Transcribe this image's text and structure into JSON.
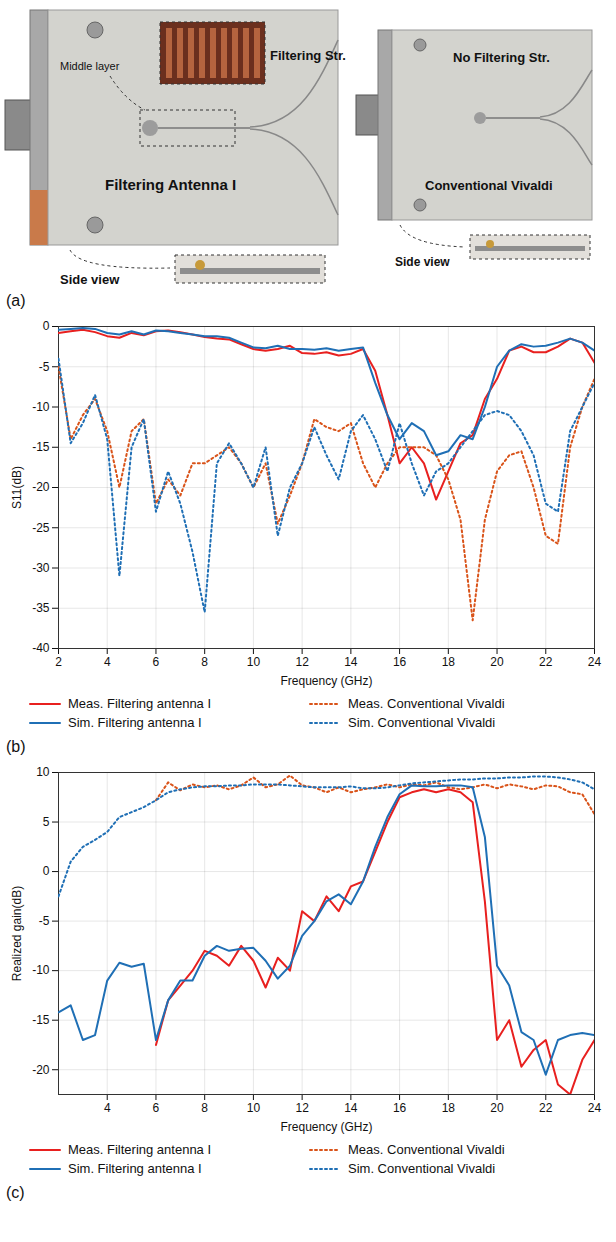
{
  "photo_panel": {
    "panel": "(a)",
    "left": {
      "title": "Filtering Antenna I",
      "inset": "Filtering Str.",
      "inset_note": "Middle layer",
      "side_view": "Side view"
    },
    "right": {
      "title": "Conventional Vivaldi",
      "note": "No Filtering Str.",
      "side_view": "Side view"
    }
  },
  "chart_data": [
    {
      "type": "line",
      "panel": "(b)",
      "xlabel": "Frequency (GHz)",
      "ylabel": "S11(dB)",
      "xlim": [
        2,
        24
      ],
      "xticks": [
        2,
        4,
        6,
        8,
        10,
        12,
        14,
        16,
        18,
        20,
        22,
        24
      ],
      "ylim": [
        -40,
        0
      ],
      "yticks": [
        -40,
        -35,
        -30,
        -25,
        -20,
        -15,
        -10,
        -5,
        0
      ],
      "grid": true,
      "legend": "bottom",
      "x": [
        2,
        2.5,
        3,
        3.5,
        4,
        4.5,
        5,
        5.5,
        6,
        6.5,
        7,
        7.5,
        8,
        8.5,
        9,
        9.5,
        10,
        10.5,
        11,
        11.5,
        12,
        12.5,
        13,
        13.5,
        14,
        14.5,
        15,
        15.5,
        16,
        16.5,
        17,
        17.5,
        18,
        18.5,
        19,
        19.5,
        20,
        20.5,
        21,
        21.5,
        22,
        22.5,
        23,
        23.5,
        24
      ],
      "series": [
        {
          "name": "Meas. Filtering antenna I",
          "color": "#e8201f",
          "line_style": "solid",
          "values": [
            -0.8,
            -0.6,
            -0.4,
            -0.7,
            -1.2,
            -1.4,
            -0.8,
            -1.1,
            -0.6,
            -0.5,
            -0.7,
            -1.0,
            -1.3,
            -1.5,
            -1.6,
            -2.2,
            -2.8,
            -3.0,
            -2.8,
            -2.4,
            -3.3,
            -3.4,
            -3.2,
            -3.6,
            -3.4,
            -2.8,
            -5.5,
            -11,
            -17,
            -15,
            -17,
            -21.5,
            -18,
            -14.5,
            -13.5,
            -9,
            -6.5,
            -3,
            -2.5,
            -3.2,
            -3.2,
            -2.5,
            -1.5,
            -2,
            -4.5
          ]
        },
        {
          "name": "Meas. Conventional Vivaldi",
          "color": "#d95319",
          "line_style": "dotted",
          "values": [
            -5,
            -14,
            -11,
            -9,
            -13,
            -20,
            -13,
            -11.5,
            -22,
            -19,
            -21,
            -17,
            -17,
            -16,
            -15,
            -17,
            -20,
            -17,
            -24.5,
            -21,
            -17,
            -11.5,
            -12.5,
            -13,
            -12,
            -17,
            -20,
            -17,
            -15,
            -15,
            -15,
            -16,
            -19,
            -24,
            -36.5,
            -24,
            -18,
            -16,
            -15.5,
            -20,
            -26,
            -27,
            -15,
            -10,
            -6.5
          ]
        },
        {
          "name": "Sim. Filtering antenna I",
          "color": "#1f6fb5",
          "line_style": "solid",
          "values": [
            -0.4,
            -0.3,
            -0.2,
            -0.3,
            -0.8,
            -1.0,
            -0.6,
            -1.0,
            -0.5,
            -0.6,
            -0.8,
            -1.0,
            -1.2,
            -1.2,
            -1.4,
            -2.0,
            -2.6,
            -2.7,
            -2.4,
            -2.8,
            -2.8,
            -2.9,
            -2.7,
            -3.0,
            -2.8,
            -2.6,
            -7,
            -11,
            -14,
            -12,
            -13,
            -16,
            -15.5,
            -13.5,
            -14,
            -10,
            -5,
            -3,
            -2.2,
            -2.5,
            -2.4,
            -2.0,
            -1.5,
            -2.0,
            -3
          ]
        },
        {
          "name": "Sim. Conventional Vivaldi",
          "color": "#1f6fb5",
          "line_style": "dotted",
          "values": [
            -4,
            -14.5,
            -12,
            -8.5,
            -14,
            -31,
            -15,
            -11.5,
            -23,
            -18,
            -22,
            -28,
            -35.5,
            -17,
            -14.5,
            -17,
            -20,
            -15,
            -26,
            -20,
            -17,
            -12.5,
            -16,
            -19,
            -13,
            -11,
            -14,
            -18,
            -12,
            -17,
            -21,
            -18,
            -17,
            -15,
            -13,
            -11,
            -10.5,
            -11,
            -13,
            -16,
            -22,
            -23,
            -13,
            -10,
            -7
          ]
        }
      ]
    },
    {
      "type": "line",
      "panel": "(c)",
      "xlabel": "Frequency (GHz)",
      "ylabel": "Realized gain(dB)",
      "xlim": [
        2,
        24
      ],
      "xticks": [
        4,
        6,
        8,
        10,
        12,
        14,
        16,
        18,
        20,
        22,
        24
      ],
      "ylim": [
        -22.5,
        10
      ],
      "yticks": [
        -20,
        -15,
        -10,
        -5,
        0,
        5,
        10
      ],
      "grid": true,
      "legend": "bottom",
      "x": [
        2,
        2.5,
        3,
        3.5,
        4,
        4.5,
        5,
        5.5,
        6,
        6.5,
        7,
        7.5,
        8,
        8.5,
        9,
        9.5,
        10,
        10.5,
        11,
        11.5,
        12,
        12.5,
        13,
        13.5,
        14,
        14.5,
        15,
        15.5,
        16,
        16.5,
        17,
        17.5,
        18,
        18.5,
        19,
        19.5,
        20,
        20.5,
        21,
        21.5,
        22,
        22.5,
        23,
        23.5,
        24
      ],
      "series": [
        {
          "name": "Meas. Filtering antenna I",
          "color": "#e8201f",
          "line_style": "solid",
          "values": [
            null,
            null,
            null,
            null,
            null,
            null,
            null,
            null,
            -17.5,
            -13,
            -11.5,
            -10,
            -8,
            -8.5,
            -9.5,
            -7.5,
            -9,
            -11.7,
            -8.7,
            -10,
            -4,
            -5,
            -2.5,
            -4,
            -1.5,
            -1,
            2,
            5,
            7.5,
            8,
            8.3,
            8,
            8.3,
            8,
            7,
            -3,
            -17,
            -15,
            -19.7,
            -18,
            -17,
            -21.5,
            -22.5,
            -19,
            -17
          ]
        },
        {
          "name": "Meas. Conventional Vivaldi",
          "color": "#d95319",
          "line_style": "dotted",
          "values": [
            null,
            null,
            null,
            null,
            null,
            null,
            null,
            null,
            7.2,
            9,
            8.2,
            8.8,
            8.5,
            8.7,
            8.3,
            8.7,
            9.5,
            8.5,
            8.8,
            9.7,
            8.7,
            8.5,
            8.0,
            8.5,
            8.0,
            8.3,
            8.5,
            8.8,
            8.5,
            8.8,
            8.7,
            9,
            8.5,
            8.3,
            8.5,
            8.8,
            8.4,
            8.8,
            8.6,
            8.3,
            8.7,
            8.6,
            8.0,
            7.8,
            5.8
          ]
        },
        {
          "name": "Sim. Filtering antenna I",
          "color": "#1f6fb5",
          "line_style": "solid",
          "values": [
            -14.2,
            -13.5,
            -17,
            -16.5,
            -11,
            -9.2,
            -9.6,
            -9.3,
            -17,
            -13,
            -11,
            -11,
            -8.5,
            -7.5,
            -8,
            -7.8,
            -7.7,
            -9,
            -10.8,
            -9.5,
            -6.5,
            -5,
            -3,
            -2.3,
            -3.3,
            -1,
            2.5,
            5.5,
            7.8,
            8.7,
            8.6,
            8.6,
            8.7,
            8.7,
            8.5,
            3.5,
            -9.5,
            -11.5,
            -16.2,
            -17,
            -20.5,
            -17,
            -16.5,
            -16.3,
            -16.5
          ]
        },
        {
          "name": "Sim. Conventional Vivaldi",
          "color": "#1f6fb5",
          "line_style": "dotted",
          "values": [
            -2.5,
            1,
            2.5,
            3.2,
            4,
            5.5,
            6,
            6.5,
            7.2,
            8,
            8.3,
            8.5,
            8.6,
            8.6,
            8.7,
            8.7,
            8.8,
            8.8,
            8.8,
            8.7,
            8.6,
            8.5,
            8.5,
            8.5,
            8.6,
            8.4,
            8.4,
            8.5,
            8.7,
            8.9,
            9,
            9.1,
            9.2,
            9.3,
            9.3,
            9.4,
            9.4,
            9.5,
            9.5,
            9.6,
            9.6,
            9.5,
            9.3,
            9,
            8.3
          ]
        }
      ]
    }
  ]
}
